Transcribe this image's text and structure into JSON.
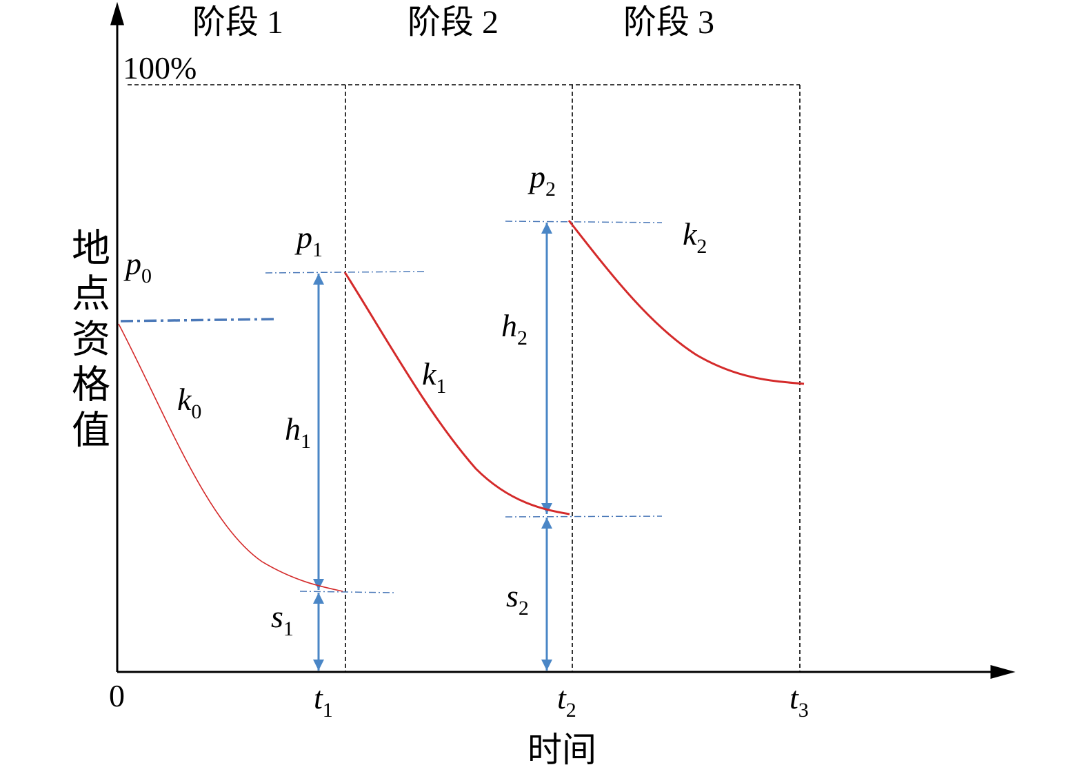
{
  "stages": [
    "阶段 1",
    "阶段 2",
    "阶段 3"
  ],
  "max_label": "100%",
  "y_axis_label": "地点资格值",
  "x_axis_label": "时间",
  "x_ticks": [
    {
      "main": "0"
    },
    {
      "main": "t",
      "sub": "1"
    },
    {
      "main": "t",
      "sub": "2"
    },
    {
      "main": "t",
      "sub": "3"
    }
  ],
  "symbols": [
    {
      "main": "p",
      "sub": "0"
    },
    {
      "main": "p",
      "sub": "1"
    },
    {
      "main": "p",
      "sub": "2"
    },
    {
      "main": "k",
      "sub": "0"
    },
    {
      "main": "k",
      "sub": "1"
    },
    {
      "main": "k",
      "sub": "2"
    },
    {
      "main": "h",
      "sub": "1"
    },
    {
      "main": "h",
      "sub": "2"
    },
    {
      "main": "s",
      "sub": "1"
    },
    {
      "main": "s",
      "sub": "2"
    }
  ]
}
